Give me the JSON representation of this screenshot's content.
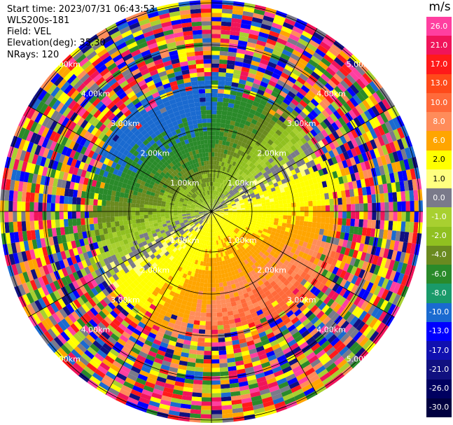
{
  "header": {
    "start_time": "Start time: 2023/07/31 06:43:53",
    "instrument": "WLS200s-181",
    "field": "Field: VEL",
    "elevation": "Elevation(deg): 35.30",
    "nrays": "NRays: 120"
  },
  "colorbar": {
    "unit": "m/s",
    "levels": [
      {
        "label": "26.0",
        "color": "#ff3fa0"
      },
      {
        "label": "21.0",
        "color": "#f0145a"
      },
      {
        "label": "17.0",
        "color": "#ff1a1a"
      },
      {
        "label": "13.0",
        "color": "#ff4a1a"
      },
      {
        "label": "10.0",
        "color": "#ff6a3a"
      },
      {
        "label": "8.0",
        "color": "#ff8c5a"
      },
      {
        "label": "6.0",
        "color": "#ffa500"
      },
      {
        "label": "2.0",
        "color": "#ffff00"
      },
      {
        "label": "1.0",
        "color": "#ffff80"
      },
      {
        "label": "0.0",
        "color": "#7a7a8a"
      },
      {
        "label": "-1.0",
        "color": "#a8d030"
      },
      {
        "label": "-2.0",
        "color": "#90c020"
      },
      {
        "label": "-4.0",
        "color": "#6a8a20"
      },
      {
        "label": "-6.0",
        "color": "#2a8a2a"
      },
      {
        "label": "-8.0",
        "color": "#1a9a6a"
      },
      {
        "label": "-10.0",
        "color": "#1a6ad0"
      },
      {
        "label": "-13.0",
        "color": "#0000ff"
      },
      {
        "label": "-17.0",
        "color": "#1010b0"
      },
      {
        "label": "-21.0",
        "color": "#101080"
      },
      {
        "label": "-26.0",
        "color": "#000060"
      },
      {
        "label": "-30.0",
        "color": "#000040"
      }
    ]
  },
  "rings": {
    "labels": [
      "1.00km",
      "2.00km",
      "3.00km",
      "4.00km",
      "5.00km"
    ]
  }
}
